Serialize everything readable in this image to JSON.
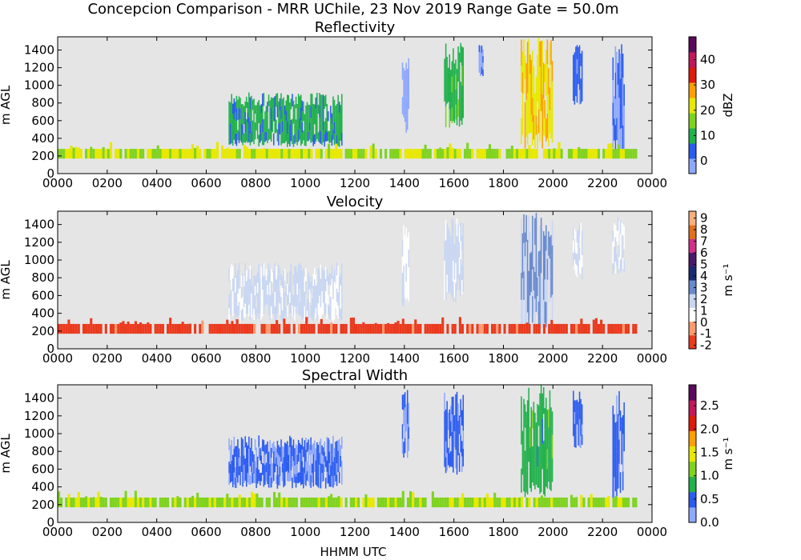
{
  "figure": {
    "title": "Concepcion Comparison - MRR UChile, 23 Nov 2019 Range Gate = 50.0m",
    "xlabel": "HHMM UTC"
  },
  "colors": {
    "background": "#ffffff",
    "plot_bg": "#e5e5e5",
    "axes": "#000000"
  },
  "chart_data": [
    {
      "id": "reflectivity",
      "type": "heatmap",
      "title": "Reflectivity",
      "xlabel": "",
      "ylabel": "m AGL",
      "xlim": [
        0,
        2400
      ],
      "ylim": [
        0,
        1550
      ],
      "xticks": [
        "0000",
        "0200",
        "0400",
        "0600",
        "0800",
        "1000",
        "1200",
        "1400",
        "1600",
        "1800",
        "2000",
        "2200",
        "0000"
      ],
      "yticks": [
        0,
        200,
        400,
        600,
        800,
        1000,
        1200,
        1400
      ],
      "colorbar": {
        "label": "dBZ",
        "range": [
          -5,
          49
        ],
        "ticks": [
          "0",
          "10",
          "20",
          "30",
          "40"
        ],
        "tick_values": [
          0,
          10,
          20,
          30,
          40
        ],
        "colors": [
          "#8fa8ff",
          "#2b5cf0",
          "#22b14c",
          "#7fd320",
          "#e8e800",
          "#ffa000",
          "#e01a0a",
          "#c2185b",
          "#5a0a5a"
        ]
      },
      "precip_events": [
        {
          "start": 690,
          "end": 1150,
          "bottom": 300,
          "top": 920,
          "level": 0.25
        },
        {
          "start": 1390,
          "end": 1420,
          "bottom": 450,
          "top": 1400,
          "level": 0.05
        },
        {
          "start": 1560,
          "end": 1640,
          "bottom": 520,
          "top": 1500,
          "level": 0.3
        },
        {
          "start": 1700,
          "end": 1720,
          "bottom": 1100,
          "top": 1500,
          "level": 0.08
        },
        {
          "start": 1870,
          "end": 2000,
          "bottom": 280,
          "top": 1550,
          "level": 0.55
        },
        {
          "start": 2080,
          "end": 2120,
          "bottom": 780,
          "top": 1500,
          "level": 0.15
        },
        {
          "start": 2240,
          "end": 2290,
          "bottom": 200,
          "top": 1500,
          "level": 0.12
        }
      ],
      "surface_band": {
        "bottom": 170,
        "top": 280,
        "level": 0.45
      }
    },
    {
      "id": "velocity",
      "type": "heatmap",
      "title": "Velocity",
      "xlabel": "",
      "ylabel": "m s$^{-1}$",
      "ylabel_left": "m AGL",
      "xlim": [
        0,
        2400
      ],
      "ylim": [
        0,
        1550
      ],
      "xticks": [
        "0000",
        "0200",
        "0400",
        "0600",
        "0800",
        "1000",
        "1200",
        "1400",
        "1600",
        "1800",
        "2000",
        "2200",
        "0000"
      ],
      "yticks": [
        0,
        200,
        400,
        600,
        800,
        1000,
        1200,
        1400
      ],
      "colorbar": {
        "label": "m s⁻¹",
        "range": [
          -2.3,
          9.6
        ],
        "ticks": [
          "9",
          "8",
          "7",
          "6",
          "5",
          "4",
          "3",
          "2",
          "1",
          "0",
          "-1",
          "-2"
        ],
        "tick_values": [
          9,
          8,
          7,
          6,
          5,
          4,
          3,
          2,
          1,
          0,
          -1,
          -2
        ],
        "colors": [
          "#ea3a1e",
          "#ff9a70",
          "#ffffff",
          "#c9d7f3",
          "#6a8acc",
          "#1a2b70",
          "#4a1a6a",
          "#d0308a",
          "#e07020",
          "#f5b080"
        ]
      },
      "precip_events": [
        {
          "start": 690,
          "end": 1150,
          "bottom": 300,
          "top": 980,
          "level": 0.32
        },
        {
          "start": 1390,
          "end": 1420,
          "bottom": 450,
          "top": 1400,
          "level": 0.3
        },
        {
          "start": 1560,
          "end": 1640,
          "bottom": 520,
          "top": 1500,
          "level": 0.33
        },
        {
          "start": 1870,
          "end": 2000,
          "bottom": 220,
          "top": 1550,
          "level": 0.4
        },
        {
          "start": 2080,
          "end": 2120,
          "bottom": 780,
          "top": 1500,
          "level": 0.3
        },
        {
          "start": 2240,
          "end": 2290,
          "bottom": 800,
          "top": 1500,
          "level": 0.3
        }
      ],
      "surface_band": {
        "bottom": 170,
        "top": 280,
        "level": 0.05
      }
    },
    {
      "id": "spectral-width",
      "type": "heatmap",
      "title": "Spectral Width",
      "xlabel": "HHMM UTC",
      "ylabel": "m AGL",
      "xlim": [
        0,
        2400
      ],
      "ylim": [
        0,
        1550
      ],
      "xticks": [
        "0000",
        "0200",
        "0400",
        "0600",
        "0800",
        "1000",
        "1200",
        "1400",
        "1600",
        "1800",
        "2000",
        "2200",
        "0000"
      ],
      "yticks": [
        0,
        200,
        400,
        600,
        800,
        1000,
        1200,
        1400
      ],
      "colorbar": {
        "label": "m s⁻¹",
        "range": [
          0,
          2.95
        ],
        "ticks": [
          "0.0",
          "0.5",
          "1.0",
          "1.5",
          "2.0",
          "2.5"
        ],
        "tick_values": [
          0,
          0.5,
          1.0,
          1.5,
          2.0,
          2.5
        ],
        "colors": [
          "#8fa8ff",
          "#2b5cf0",
          "#22b14c",
          "#7fd320",
          "#e8e800",
          "#ffa000",
          "#e01a0a",
          "#c2185b",
          "#5a0a5a"
        ]
      },
      "precip_events": [
        {
          "start": 690,
          "end": 1150,
          "bottom": 380,
          "top": 980,
          "level": 0.13
        },
        {
          "start": 1390,
          "end": 1420,
          "bottom": 700,
          "top": 1500,
          "level": 0.12
        },
        {
          "start": 1560,
          "end": 1640,
          "bottom": 520,
          "top": 1500,
          "level": 0.15
        },
        {
          "start": 1870,
          "end": 2000,
          "bottom": 280,
          "top": 1550,
          "level": 0.28
        },
        {
          "start": 2080,
          "end": 2120,
          "bottom": 780,
          "top": 1500,
          "level": 0.14
        },
        {
          "start": 2240,
          "end": 2290,
          "bottom": 200,
          "top": 1500,
          "level": 0.15
        }
      ],
      "surface_band": {
        "bottom": 170,
        "top": 280,
        "level": 0.42
      }
    }
  ]
}
